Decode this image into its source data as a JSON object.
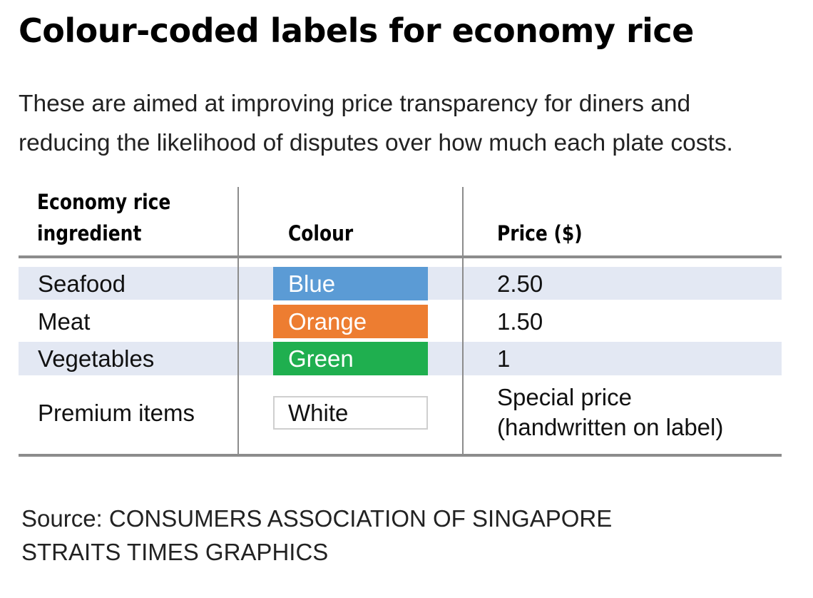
{
  "title": "Colour-coded labels for economy rice",
  "subtitle": {
    "line1": "These are aimed at improving price transparency for diners and",
    "line2": "reducing the likelihood of disputes over how much each plate costs."
  },
  "table": {
    "headers": {
      "ingredient_line1": "Economy rice",
      "ingredient_line2": "ingredient",
      "colour": "Colour",
      "price": "Price ($)"
    },
    "rows": [
      {
        "ingredient": "Seafood",
        "colour": "Blue",
        "swatch_color": "#5b9bd5",
        "price": "2.50"
      },
      {
        "ingredient": "Meat",
        "colour": "Orange",
        "swatch_color": "#ed7d31",
        "price": "1.50"
      },
      {
        "ingredient": "Vegetables",
        "colour": "Green",
        "swatch_color": "#1faf4f",
        "price": "1"
      },
      {
        "ingredient": "Premium items",
        "colour": "White",
        "swatch_color": "#ffffff",
        "price_line1": "Special price",
        "price_line2": "(handwritten on label)"
      }
    ],
    "band_color": "#e3e8f3"
  },
  "footer": {
    "source": "Source: CONSUMERS ASSOCIATION OF SINGAPORE",
    "credit": "STRAITS TIMES GRAPHICS"
  }
}
